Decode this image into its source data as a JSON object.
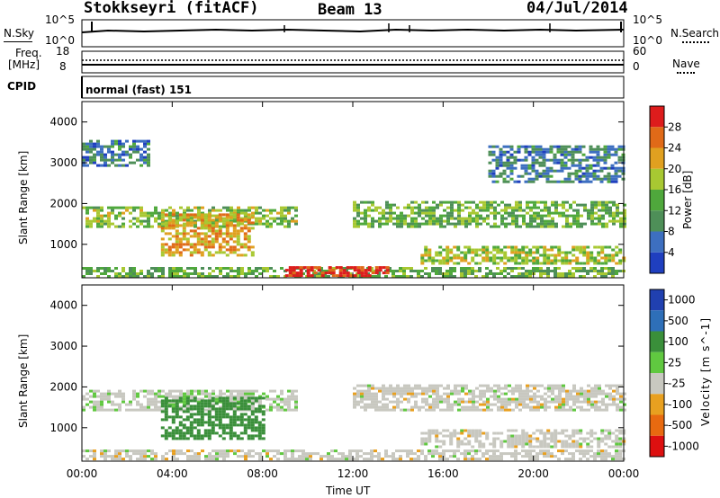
{
  "header": {
    "radar": "Stokkseyri (fitACF)",
    "beam": "Beam 13",
    "date": "04/Jul/2014"
  },
  "noise_panel": {
    "left_label": "N.Sky",
    "right_label": "N.Search",
    "left_ticks": [
      "10^5",
      "10^0"
    ],
    "right_ticks": [
      "10^5",
      "10^0"
    ]
  },
  "freq_panel": {
    "left_label_1": "Freq.",
    "left_label_2": "[MHz]",
    "right_label": "Nave",
    "left_ticks": [
      "18",
      "8"
    ],
    "right_ticks": [
      "60",
      "0"
    ]
  },
  "cpid": {
    "label": "CPID",
    "mode": "normal (fast) 151"
  },
  "chart_data": [
    {
      "type": "heatmap",
      "title": "",
      "quantity": "Power",
      "ylabel": "Slant Range [km]",
      "colorbar_label": "Power [dB]",
      "colorbar_ticks": [
        "4",
        "8",
        "12",
        "16",
        "20",
        "24",
        "28"
      ],
      "colorbar_colors": [
        "#1f3fbf",
        "#3d6fc0",
        "#4e8f58",
        "#4fa83c",
        "#a8c832",
        "#e0a020",
        "#e06a18",
        "#dd1c1c"
      ],
      "ylim": [
        180,
        4500
      ],
      "yticks": [
        "1000",
        "2000",
        "3000",
        "4000"
      ],
      "ytick_values": [
        1000,
        2000,
        3000,
        4000
      ],
      "xlim_hours": [
        0,
        24
      ],
      "echo_bands": [
        {
          "t_start": 0.0,
          "t_end": 24.0,
          "range_km": [
            180,
            380
          ],
          "power_db": 14
        },
        {
          "t_start": 0.0,
          "t_end": 9.5,
          "range_km": [
            1400,
            1900
          ],
          "power_db": 16
        },
        {
          "t_start": 3.5,
          "t_end": 7.5,
          "range_km": [
            700,
            1700
          ],
          "power_db": 22
        },
        {
          "t_start": 9.0,
          "t_end": 13.5,
          "range_km": [
            200,
            400
          ],
          "power_db": 30
        },
        {
          "t_start": 12.0,
          "t_end": 24.0,
          "range_km": [
            1400,
            2000
          ],
          "power_db": 14
        },
        {
          "t_start": 15.0,
          "t_end": 24.0,
          "range_km": [
            500,
            900
          ],
          "power_db": 18
        },
        {
          "t_start": 0.0,
          "t_end": 3.0,
          "range_km": [
            2900,
            3500
          ],
          "power_db": 8
        },
        {
          "t_start": 18.0,
          "t_end": 24.0,
          "range_km": [
            2500,
            3400
          ],
          "power_db": 8
        }
      ]
    },
    {
      "type": "heatmap",
      "title": "",
      "quantity": "Velocity",
      "ylabel": "Slant Range [km]",
      "colorbar_label": "Velocity [m s^-1]",
      "colorbar_ticks": [
        "1000",
        "500",
        "100",
        "25",
        "-25",
        "-100",
        "-500",
        "-1000"
      ],
      "colorbar_colors": [
        "#2040b0",
        "#2e6fb8",
        "#3a8f3a",
        "#60c840",
        "#c8c8c0",
        "#e8a020",
        "#e86a10",
        "#dd1010"
      ],
      "ylim": [
        180,
        4500
      ],
      "yticks": [
        "1000",
        "2000",
        "3000",
        "4000"
      ],
      "ytick_values": [
        1000,
        2000,
        3000,
        4000
      ],
      "xlim_hours": [
        0,
        24
      ],
      "echo_bands": [
        {
          "t_start": 0.0,
          "t_end": 24.0,
          "range_km": [
            200,
            400
          ],
          "velocity": 0
        },
        {
          "t_start": 0.0,
          "t_end": 9.5,
          "range_km": [
            1400,
            1900
          ],
          "velocity": 10
        },
        {
          "t_start": 3.5,
          "t_end": 8.0,
          "range_km": [
            700,
            1700
          ],
          "velocity": 150
        },
        {
          "t_start": 12.0,
          "t_end": 24.0,
          "range_km": [
            1400,
            2000
          ],
          "velocity": 0
        },
        {
          "t_start": 15.0,
          "t_end": 24.0,
          "range_km": [
            500,
            900
          ],
          "velocity": 0
        }
      ]
    }
  ],
  "x_axis": {
    "label": "Time UT",
    "ticks": [
      "00:00",
      "04:00",
      "08:00",
      "12:00",
      "16:00",
      "20:00",
      "00:00"
    ],
    "tick_hours": [
      0,
      4,
      8,
      12,
      16,
      20,
      24
    ]
  }
}
